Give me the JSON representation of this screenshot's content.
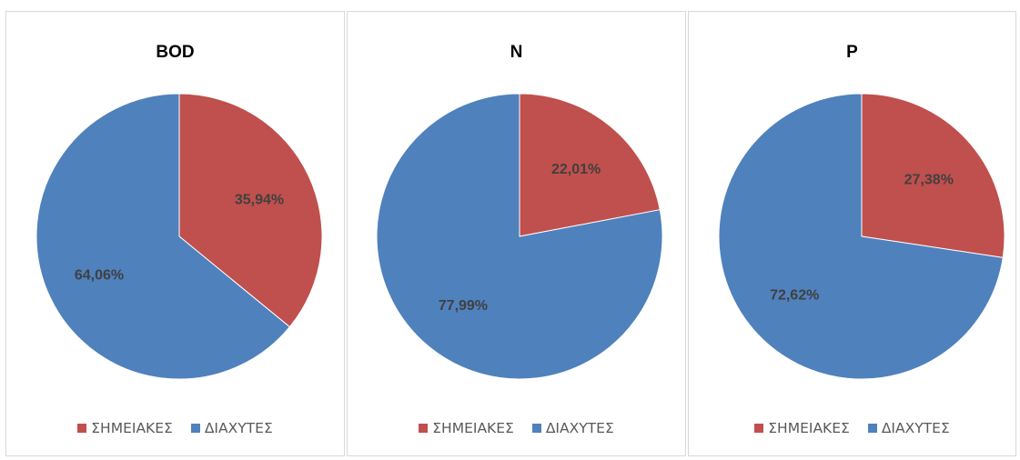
{
  "colors": {
    "point_sources": "#C0504D",
    "diffuse_sources": "#4F81BD"
  },
  "chart_data": [
    {
      "type": "pie",
      "title": "BOD",
      "slices": [
        {
          "label": "ΣΗΜΕΙΑΚΕΣ",
          "value": 35.94,
          "display": "35,94%",
          "color": "#C0504D"
        },
        {
          "label": "ΔΙΑΧΥΤΕΣ",
          "value": 64.06,
          "display": "64,06%",
          "color": "#4F81BD"
        }
      ],
      "legend": [
        "ΣΗΜΕΙΑΚΕΣ",
        "ΔΙΑΧΥΤΕΣ"
      ],
      "legend_position": "bottom"
    },
    {
      "type": "pie",
      "title": "N",
      "slices": [
        {
          "label": "ΣΗΜΕΙΑΚΕΣ",
          "value": 22.01,
          "display": "22,01%",
          "color": "#C0504D"
        },
        {
          "label": "ΔΙΑΧΥΤΕΣ",
          "value": 77.99,
          "display": "77,99%",
          "color": "#4F81BD"
        }
      ],
      "legend": [
        "ΣΗΜΕΙΑΚΕΣ",
        "ΔΙΑΧΥΤΕΣ"
      ],
      "legend_position": "bottom"
    },
    {
      "type": "pie",
      "title": "P",
      "slices": [
        {
          "label": "ΣΗΜΕΙΑΚΕΣ",
          "value": 27.38,
          "display": "27,38%",
          "color": "#C0504D"
        },
        {
          "label": "ΔΙΑΧΥΤΕΣ",
          "value": 72.62,
          "display": "72,62%",
          "color": "#4F81BD"
        }
      ],
      "legend": [
        "ΣΗΜΕΙΑΚΕΣ",
        "ΔΙΑΧΥΤΕΣ"
      ],
      "legend_position": "bottom"
    }
  ]
}
